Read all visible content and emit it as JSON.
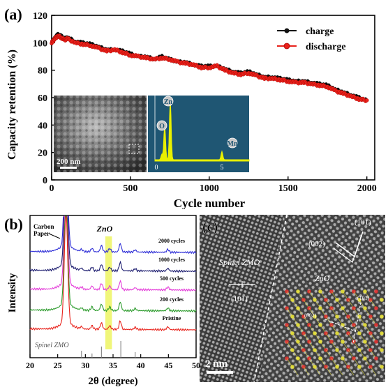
{
  "panel_a": {
    "label": "(a)",
    "chart_data": {
      "type": "line",
      "xlabel": "Cycle number",
      "ylabel": "Capacity retention (%)",
      "xlim": [
        0,
        2050
      ],
      "ylim": [
        0,
        120
      ],
      "xticks": [
        0,
        500,
        1000,
        1500,
        2000
      ],
      "yticks": [
        0,
        20,
        40,
        60,
        80,
        100,
        120
      ],
      "legend": "top-right",
      "series": [
        {
          "name": "charge",
          "color": "#111111",
          "x": [
            0,
            20,
            40,
            60,
            80,
            100,
            150,
            200,
            250,
            300,
            350,
            400,
            450,
            500,
            550,
            600,
            650,
            700,
            750,
            800,
            850,
            900,
            950,
            1000,
            1050,
            1100,
            1150,
            1200,
            1250,
            1300,
            1350,
            1400,
            1450,
            1500,
            1550,
            1600,
            1650,
            1700,
            1750,
            1800,
            1850,
            1900,
            1950,
            2000
          ],
          "y": [
            100,
            104,
            106,
            105,
            103,
            104,
            101,
            100,
            99,
            97,
            95,
            95,
            94,
            92,
            90,
            90,
            88,
            90,
            88,
            86,
            86,
            84,
            83,
            83,
            83,
            81,
            79,
            78,
            79,
            77,
            75,
            75,
            74,
            73,
            72,
            72,
            71,
            70,
            69,
            66,
            64,
            62,
            60,
            58
          ]
        },
        {
          "name": "discharge",
          "color": "#e8221b",
          "x": [
            0,
            20,
            40,
            60,
            80,
            100,
            150,
            200,
            250,
            300,
            350,
            400,
            450,
            500,
            550,
            600,
            650,
            700,
            750,
            800,
            850,
            900,
            950,
            1000,
            1050,
            1100,
            1150,
            1200,
            1250,
            1300,
            1350,
            1400,
            1450,
            1500,
            1550,
            1600,
            1650,
            1700,
            1750,
            1800,
            1850,
            1900,
            1950,
            2000
          ],
          "y": [
            100,
            103,
            105,
            104,
            102,
            103,
            100,
            99,
            98,
            96,
            94,
            95,
            93,
            91,
            90,
            89,
            88,
            89,
            88,
            86,
            85,
            84,
            82,
            82,
            83,
            80,
            78,
            77,
            78,
            76,
            74,
            74,
            73,
            72,
            71,
            71,
            70,
            69,
            68,
            65,
            63,
            61,
            59,
            58
          ]
        }
      ]
    },
    "inset_sem": {
      "scale_label": "200 nm"
    },
    "inset_eds": {
      "peaks": [
        "O",
        "Zn",
        "Mn"
      ],
      "xticks": [
        "0",
        "5"
      ],
      "background": "#1f5673",
      "trace_color": "#e8f000"
    }
  },
  "panel_b": {
    "label": "(b)",
    "chart_data": {
      "type": "line",
      "xlabel": "2θ (degree)",
      "ylabel": "Intensity",
      "xlim": [
        20,
        50
      ],
      "xticks": [
        20,
        25,
        30,
        35,
        40,
        45,
        50
      ],
      "annotations": [
        "Carbon Paper",
        "ZnO",
        "Spinel ZMO"
      ],
      "highlight_band": [
        33.6,
        34.8
      ],
      "series": [
        {
          "name": "2000 cycles",
          "color": "#2b2bd6",
          "offset": 4
        },
        {
          "name": "1000 cycles",
          "color": "#1a1a6e",
          "offset": 3
        },
        {
          "name": "500 cycles",
          "color": "#e33ad8",
          "offset": 2
        },
        {
          "name": "200 cycles",
          "color": "#2a9a2a",
          "offset": 1
        },
        {
          "name": "Pristine",
          "color": "#e8221b",
          "offset": 0
        }
      ],
      "reference_peaks": [
        29.3,
        31.2,
        32.9,
        36.4,
        39.0
      ]
    }
  },
  "panel_c": {
    "label": "(c)",
    "annotations": [
      "(101)",
      "(002)",
      "ZnO",
      "Spinel ZMO",
      "(101)",
      "(101)",
      "(002)"
    ],
    "scale_label": "2 nm"
  }
}
